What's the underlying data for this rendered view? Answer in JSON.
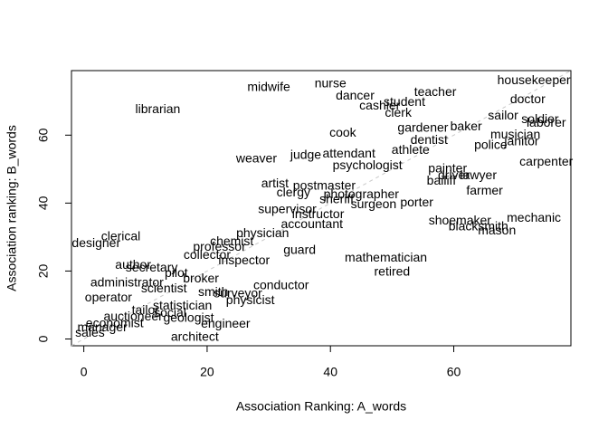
{
  "chart_data": {
    "type": "scatter",
    "xlabel": "Association Ranking: A_words",
    "ylabel": "Association ranking: B_words",
    "xlim": [
      -2,
      79
    ],
    "ylim": [
      -2,
      79
    ],
    "xticks": [
      0,
      20,
      40,
      60
    ],
    "yticks": [
      0,
      20,
      40,
      60
    ],
    "color": "#000000",
    "labels": [
      "midwife",
      "nurse",
      "dancer",
      "cashier",
      "student",
      "clerk",
      "teacher",
      "housekeeper",
      "doctor",
      "sailor",
      "soldier",
      "laborer",
      "baker",
      "gardener",
      "musician",
      "janitor",
      "police",
      "dentist",
      "cook",
      "athlete",
      "librarian",
      "weaver",
      "judge",
      "attendant",
      "psychologist",
      "carpenter",
      "painter",
      "driver",
      "lawyer",
      "bailiff",
      "farmer",
      "artist",
      "postmaster",
      "clergy",
      "photographer",
      "sheriff",
      "surgeon",
      "porter",
      "supervisor",
      "instructor",
      "accountant",
      "shoemaker",
      "mechanic",
      "blacksmith",
      "mason",
      "physician",
      "chemist",
      "professor",
      "collector",
      "inspector",
      "guard",
      "mathematician",
      "retired",
      "clerical",
      "designer",
      "author",
      "secretary",
      "pilot",
      "administrator",
      "broker",
      "scientist",
      "conductor",
      "smith",
      "surveyor",
      "physicist",
      "operator",
      "statistician",
      "tailor",
      "auctioneer",
      "social",
      "geologist",
      "economist",
      "engineer",
      "manager",
      "sales",
      "architect"
    ],
    "x": [
      30,
      40,
      44,
      48,
      52,
      51,
      57,
      73,
      72,
      68,
      74,
      75,
      62,
      55,
      70,
      71,
      66,
      56,
      42,
      53,
      12,
      28,
      36,
      43,
      46,
      75,
      59,
      60,
      64,
      58,
      65,
      31,
      39,
      34,
      45,
      41,
      47,
      54,
      33,
      38,
      37,
      61,
      73,
      64,
      67,
      29,
      24,
      22,
      20,
      26,
      35,
      49,
      50,
      6,
      2,
      8,
      11,
      15,
      7,
      19,
      13,
      32,
      21,
      25,
      27,
      4,
      16,
      10,
      8,
      14,
      17,
      5,
      23,
      3,
      1,
      18
    ],
    "y": [
      74,
      75,
      71.5,
      68.5,
      69.6,
      66.4,
      72.5,
      76,
      70.4,
      65.6,
      64.5,
      63.5,
      62.4,
      62,
      60,
      58,
      57,
      58.4,
      60.5,
      55.5,
      67.5,
      53,
      54,
      54.4,
      51,
      52,
      50,
      48,
      48,
      46.4,
      43.5,
      45.6,
      45,
      43,
      42.4,
      41,
      39.5,
      40,
      38,
      36.5,
      33.6,
      34.7,
      35.5,
      33,
      31.7,
      31,
      28.5,
      27,
      24.5,
      23,
      26,
      23.7,
      19.7,
      30,
      28,
      21.6,
      20.8,
      19.2,
      16.5,
      17.6,
      14.7,
      15.7,
      13.6,
      13.3,
      11.2,
      12,
      9.6,
      8.3,
      6.4,
      7.5,
      6,
      4.5,
      4.3,
      3.2,
      1.6,
      0.5
    ]
  }
}
